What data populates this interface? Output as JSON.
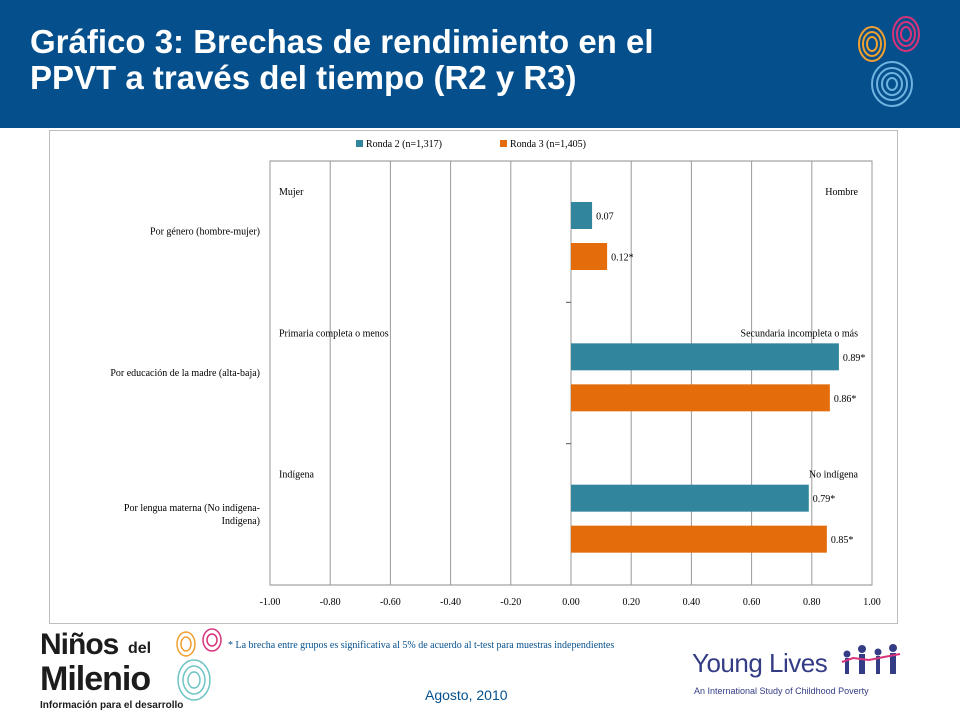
{
  "header": {
    "title_line1": "Gráfico 3: Brechas de rendimiento en el",
    "title_line2": "PPVT a través del tiempo (R2 y R3)",
    "bg_color": "#05508c"
  },
  "chart_data": {
    "type": "bar",
    "orientation": "horizontal",
    "categories": [
      [
        "Por género (hombre-mujer)"
      ],
      [
        "Por educación de la madre (alta-baja)"
      ],
      [
        "Por lengua materna (No indígena-",
        "Indígena)"
      ]
    ],
    "series": [
      {
        "name": "Ronda 2 (n=1,317)",
        "color": "#31859c",
        "values": [
          0.07,
          0.89,
          0.79
        ],
        "labels": [
          "0.07",
          "0.89*",
          "0.79*"
        ]
      },
      {
        "name": "Ronda 3 (n=1,405)",
        "color": "#e46c0a",
        "values": [
          0.12,
          0.86,
          0.85
        ],
        "labels": [
          "0.12*",
          "0.86*",
          "0.85*"
        ]
      }
    ],
    "group_annotations": [
      {
        "left": "Mujer",
        "right": "Hombre"
      },
      {
        "left": "Primaria completa o menos",
        "right": "Secundaria incompleta o más"
      },
      {
        "left": "Indígena",
        "right": "No indígena"
      }
    ],
    "xlim": [
      -1.0,
      1.0
    ],
    "xticks": [
      -1.0,
      -0.8,
      -0.6,
      -0.4,
      -0.2,
      0.0,
      0.2,
      0.4,
      0.6,
      0.8,
      1.0
    ],
    "xtick_labels": [
      "-1.00",
      "-0.80",
      "-0.60",
      "-0.40",
      "-0.20",
      "0.00",
      "0.20",
      "0.40",
      "0.60",
      "0.80",
      "1.00"
    ],
    "grid": "vertical",
    "legend_position": "top"
  },
  "footer": {
    "footnote": "* La brecha entre grupos es significativa al 5% de acuerdo al t-test para muestras independientes",
    "date": "Agosto, 2010"
  },
  "logos": {
    "ninos_line1": "Niños",
    "ninos_del": "del",
    "ninos_line2": "Milenio",
    "ninos_sub": "Información para el desarrollo",
    "yl_name": "Young Lives",
    "yl_sub": "An International Study of Childhood Poverty"
  }
}
